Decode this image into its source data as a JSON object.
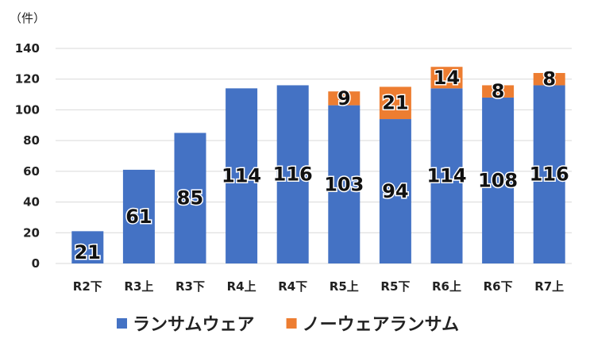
{
  "chart_data": {
    "type": "bar",
    "stacked": true,
    "unit_label": "（件）",
    "categories": [
      "R2下",
      "R3上",
      "R3下",
      "R4上",
      "R4下",
      "R5上",
      "R5下",
      "R6上",
      "R6下",
      "R7上"
    ],
    "series": [
      {
        "name": "ランサムウェア",
        "color": "#4472C4",
        "values": [
          21,
          61,
          85,
          114,
          116,
          103,
          94,
          114,
          108,
          116
        ]
      },
      {
        "name": "ノーウェアランサム",
        "color": "#ED7D31",
        "values": [
          0,
          0,
          0,
          0,
          0,
          9,
          21,
          14,
          8,
          8
        ]
      }
    ],
    "ylim": [
      0,
      140
    ],
    "yticks": [
      0,
      20,
      40,
      60,
      80,
      100,
      120,
      140
    ],
    "grid": true,
    "legend": "bottom",
    "data_labels": true
  }
}
